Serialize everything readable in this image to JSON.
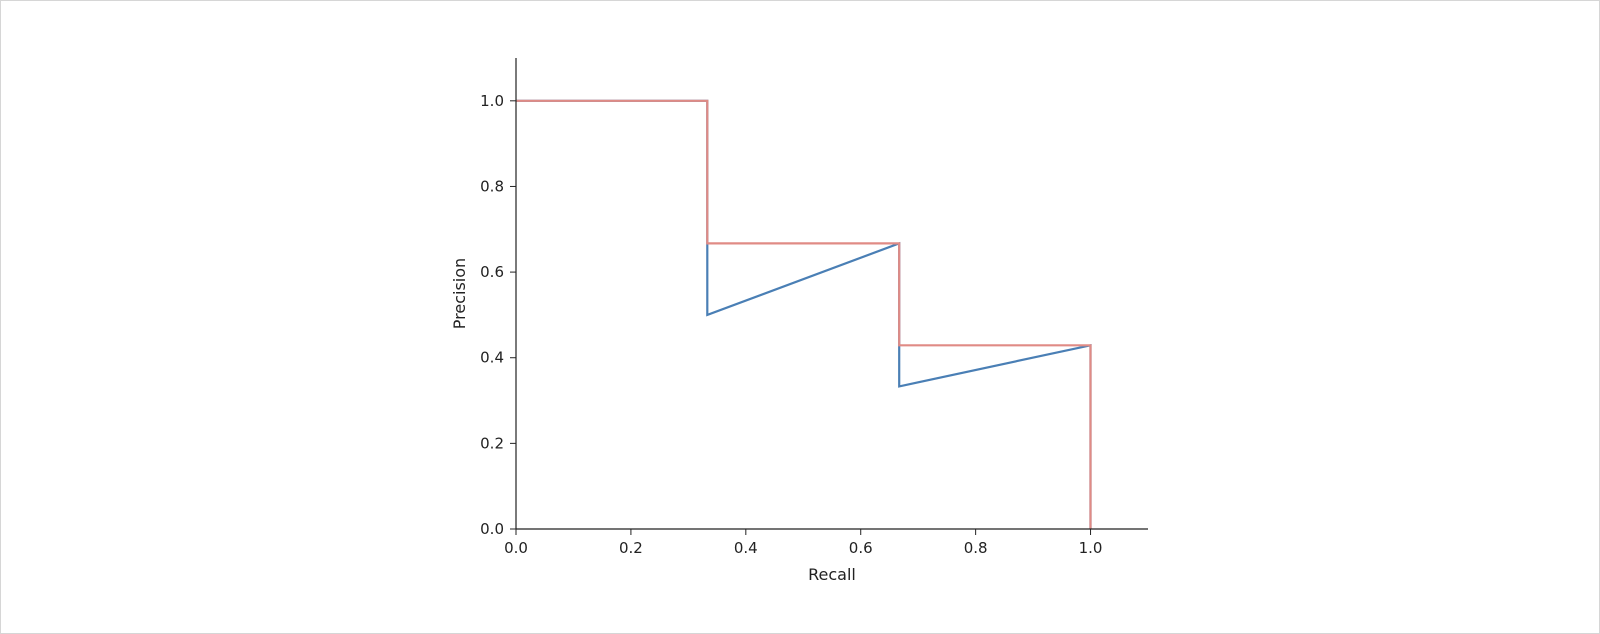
{
  "chart_data": {
    "type": "line",
    "title": "",
    "xlabel": "Recall",
    "ylabel": "Precision",
    "xlim": [
      0.0,
      1.1
    ],
    "ylim": [
      0.0,
      1.1
    ],
    "xticks": [
      0.0,
      0.2,
      0.4,
      0.6,
      0.8,
      1.0
    ],
    "yticks": [
      0.0,
      0.2,
      0.4,
      0.6,
      0.8,
      1.0
    ],
    "xtick_labels": [
      "0.0",
      "0.2",
      "0.4",
      "0.6",
      "0.8",
      "1.0"
    ],
    "ytick_labels": [
      "0.0",
      "0.2",
      "0.4",
      "0.6",
      "0.8",
      "1.0"
    ],
    "grid": false,
    "legend": "none",
    "series": [
      {
        "color": "#4a7fb5",
        "x": [
          0.0,
          0.333,
          0.333,
          0.667,
          0.667,
          1.0,
          1.0
        ],
        "y": [
          1.0,
          1.0,
          0.5,
          0.667,
          0.333,
          0.429,
          0.0
        ]
      },
      {
        "color": "#e08b85",
        "x": [
          0.0,
          0.333,
          0.333,
          0.667,
          0.667,
          1.0,
          1.0
        ],
        "y": [
          1.0,
          1.0,
          0.667,
          0.667,
          0.429,
          0.429,
          0.0
        ]
      }
    ]
  }
}
